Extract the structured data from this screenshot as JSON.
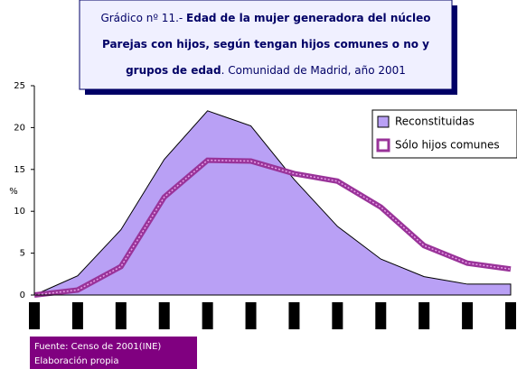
{
  "chart_data": {
    "type": "area-line",
    "title_lines": [
      [
        {
          "text": "Grádico nº 11.- ",
          "bold": false
        },
        {
          "text": "Edad de la mujer generadora del núcleo",
          "bold": true
        }
      ],
      [
        {
          "text": "Parejas con hijos, según  tengan hijos comunes o no y",
          "bold": true
        }
      ],
      [
        {
          "text": "grupos de edad",
          "bold": true
        },
        {
          "text": ". Comunidad de Madrid, año 2001",
          "bold": false
        }
      ]
    ],
    "ylabel": "%",
    "categories": [
      null,
      null,
      null,
      null,
      null,
      null,
      null,
      null,
      null,
      null,
      null,
      null
    ],
    "series": [
      {
        "name": "Reconstituidas",
        "color": "#b9a0f5",
        "kind": "area",
        "values": [
          0,
          2.3,
          7.8,
          16.2,
          22,
          20.2,
          13.8,
          8.2,
          4.3,
          2.2,
          1.3,
          1.3
        ]
      },
      {
        "name": "Sólo hijos comunes",
        "color": "#993399",
        "kind": "line",
        "values": [
          0,
          0.6,
          3.4,
          11.7,
          16.1,
          16.0,
          14.5,
          13.6,
          10.5,
          5.9,
          3.8,
          3.1
        ]
      }
    ],
    "ylim": [
      0,
      25
    ],
    "yticks": [
      0,
      5,
      10,
      15,
      20,
      25
    ],
    "source": [
      "Fuente: Censo de 2001(INE)",
      "Elaboración propia"
    ]
  }
}
